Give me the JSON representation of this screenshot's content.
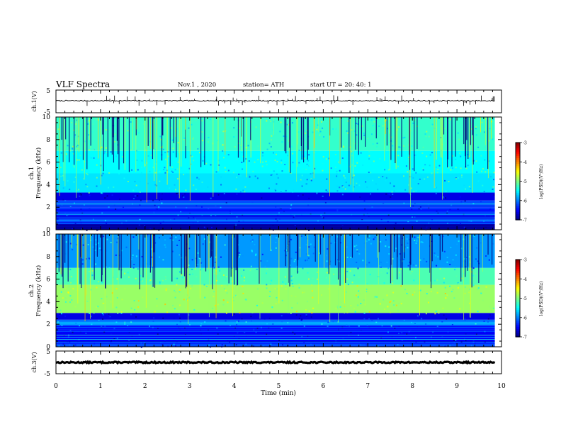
{
  "header": {
    "title": "VLF Spectra",
    "date": "Nov.1  , 2020",
    "station": "station= ATH",
    "start_time": "start  UT  =   20: 40: 1"
  },
  "chart_data": [
    {
      "type": "line",
      "panel": "ch1-waveform",
      "ylabel": "ch.1(V)",
      "ytick_labels": [
        "5",
        "-5"
      ],
      "ylim": [
        -5,
        5
      ],
      "xlim": [
        0,
        10
      ],
      "data_end_min": 9.85,
      "series": [
        {
          "baseline": 0.3,
          "typical_amplitude": 0.5,
          "max_spike": 2.4
        }
      ]
    },
    {
      "type": "heatmap",
      "panel": "ch1-spectrogram",
      "ylabel_lines": [
        "ch.1",
        "Frequency  (kHz)"
      ],
      "ytick_labels": [
        "0",
        "2",
        "4",
        "6",
        "8",
        "10"
      ],
      "ylim": [
        0,
        10
      ],
      "xlim": [
        0,
        10
      ],
      "data_end_min": 9.85,
      "colorbar": {
        "label": "log(PSD)(V²/Hz)",
        "tick_labels": [
          "-3",
          "-4",
          "-5",
          "-6",
          "-7"
        ],
        "range": [
          -7,
          -3
        ]
      },
      "bands": [
        {
          "f_low": 0.0,
          "f_high": 0.5,
          "level": -6.9
        },
        {
          "f_low": 0.5,
          "f_high": 1.1,
          "level": -6.2
        },
        {
          "f_low": 1.1,
          "f_high": 2.0,
          "level": -6.4
        },
        {
          "f_low": 2.0,
          "f_high": 2.6,
          "level": -6.2
        },
        {
          "f_low": 2.6,
          "f_high": 3.3,
          "level": -6.6
        },
        {
          "f_low": 3.3,
          "f_high": 5.0,
          "level": -5.6
        },
        {
          "f_low": 5.0,
          "f_high": 7.0,
          "level": -5.5
        },
        {
          "f_low": 7.0,
          "f_high": 10.0,
          "level": -5.3
        }
      ]
    },
    {
      "type": "heatmap",
      "panel": "ch2-spectrogram",
      "ylabel_lines": [
        "ch.2",
        "Frequency  (kHz)"
      ],
      "ytick_labels": [
        "0",
        "2",
        "4",
        "6",
        "8",
        "10"
      ],
      "ylim": [
        0,
        10
      ],
      "xlim": [
        0,
        10
      ],
      "data_end_min": 9.85,
      "colorbar": {
        "label": "log(PSD)(V²/Hz)",
        "tick_labels": [
          "-3",
          "-4",
          "-5",
          "-6",
          "-7"
        ],
        "range": [
          -7,
          -3
        ]
      },
      "bands": [
        {
          "f_low": 0.0,
          "f_high": 0.5,
          "level": -6.2
        },
        {
          "f_low": 0.5,
          "f_high": 1.9,
          "level": -6.5
        },
        {
          "f_low": 1.9,
          "f_high": 2.4,
          "level": -5.9
        },
        {
          "f_low": 2.4,
          "f_high": 3.0,
          "level": -6.6
        },
        {
          "f_low": 3.0,
          "f_high": 5.5,
          "level": -4.9
        },
        {
          "f_low": 5.5,
          "f_high": 7.0,
          "level": -5.2
        },
        {
          "f_low": 7.0,
          "f_high": 10.0,
          "level": -5.9
        }
      ]
    },
    {
      "type": "line",
      "panel": "ch3-waveform",
      "ylabel": "ch.3(V)",
      "ytick_labels": [
        "5",
        "-5"
      ],
      "ylim": [
        -5,
        5
      ],
      "xlim": [
        0,
        10
      ],
      "data_end_min": 9.85,
      "series": [
        {
          "baseline": 0.0,
          "typical_amplitude": 0.6
        }
      ]
    }
  ],
  "xaxis": {
    "label": "Time  (min)",
    "tick_labels": [
      "0",
      "1",
      "2",
      "3",
      "4",
      "5",
      "6",
      "7",
      "8",
      "9",
      "10"
    ],
    "range": [
      0,
      10
    ]
  }
}
